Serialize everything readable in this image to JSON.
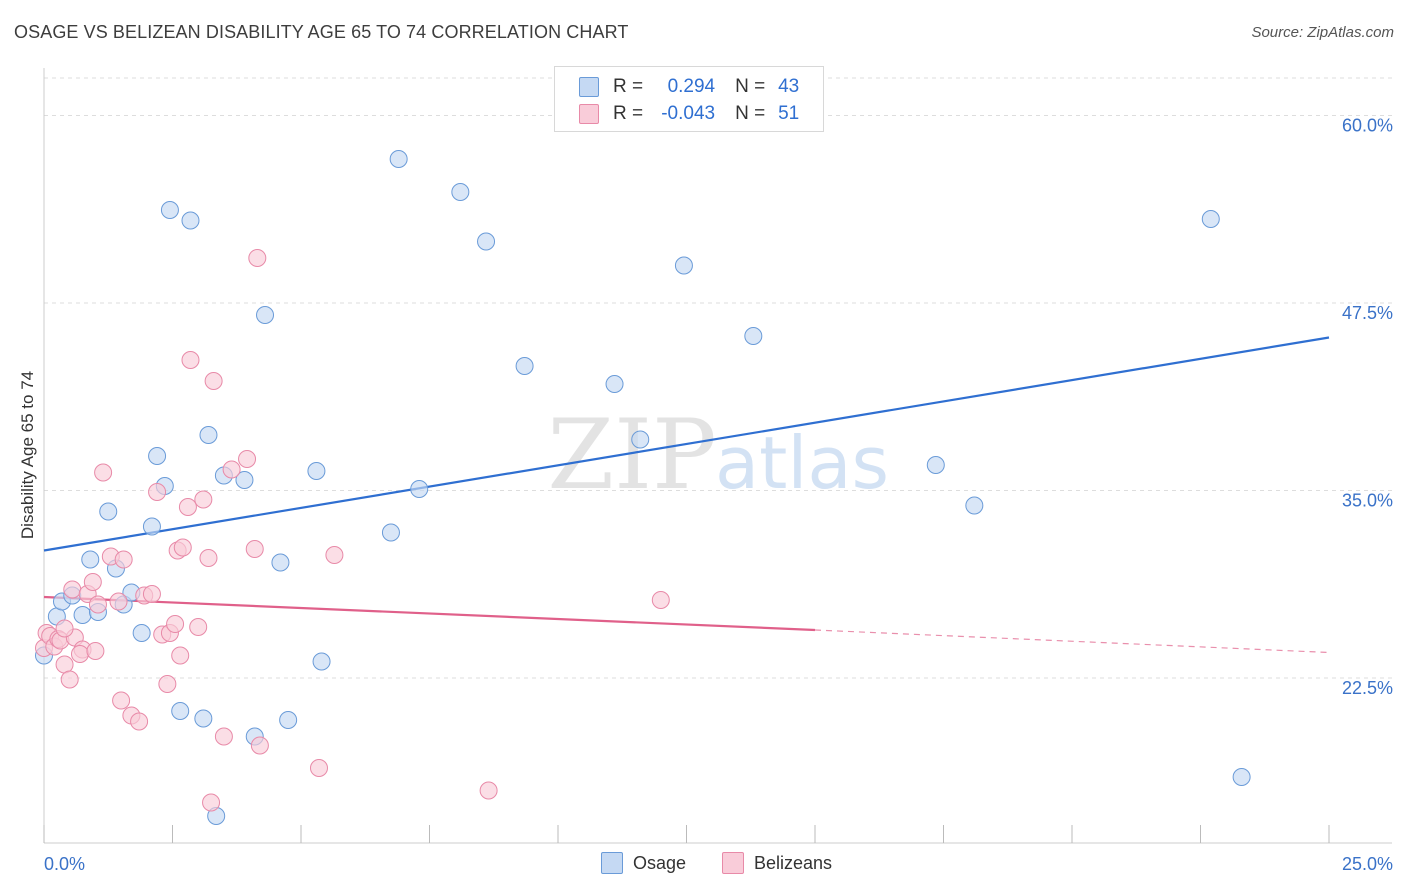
{
  "title": "OSAGE VS BELIZEAN DISABILITY AGE 65 TO 74 CORRELATION CHART",
  "source": "Source: ZipAtlas.com",
  "watermark": {
    "zip": "ZIP",
    "atlas": "atlas"
  },
  "legend": {
    "rows": [
      {
        "r_label": "R =",
        "r_value": "0.294",
        "n_label": "N =",
        "n_value": "43"
      },
      {
        "r_label": "R =",
        "r_value": "-0.043",
        "n_label": "N =",
        "n_value": "51"
      }
    ]
  },
  "bottom_legend": {
    "osage": "Osage",
    "belizeans": "Belizeans"
  },
  "colors": {
    "osage_fill": "#c5d9f3",
    "osage_stroke": "#6a9bd8",
    "osage_line": "#2f6fd1",
    "belizean_fill": "#f9ccd9",
    "belizean_stroke": "#e88aa8",
    "belizean_line": "#e0608a",
    "tick_label": "#3a72c8",
    "grid": "#dddddd"
  },
  "chart_data": {
    "type": "scatter",
    "title": "OSAGE VS BELIZEAN DISABILITY AGE 65 TO 74 CORRELATION CHART",
    "xlabel": "",
    "ylabel": "Disability Age 65 to 74",
    "xlim": [
      0,
      25
    ],
    "ylim": [
      11.5,
      62.5
    ],
    "x_tick_labels": [
      {
        "value": 0,
        "label": "0.0%"
      },
      {
        "value": 25,
        "label": "25.0%"
      }
    ],
    "y_ticks": [
      {
        "value": 22.5,
        "label": "22.5%"
      },
      {
        "value": 35.0,
        "label": "35.0%"
      },
      {
        "value": 47.5,
        "label": "47.5%"
      },
      {
        "value": 60.0,
        "label": "60.0%"
      }
    ],
    "series": [
      {
        "name": "Osage",
        "r": 0.294,
        "n": 43,
        "trend": {
          "x0": 0,
          "y0": 31.0,
          "x1": 25,
          "y1": 45.2
        },
        "points": [
          [
            0.0,
            24.0
          ],
          [
            0.25,
            26.6
          ],
          [
            0.35,
            27.6
          ],
          [
            0.55,
            28.0
          ],
          [
            0.75,
            26.7
          ],
          [
            0.9,
            30.4
          ],
          [
            1.05,
            26.9
          ],
          [
            1.25,
            33.6
          ],
          [
            1.4,
            29.8
          ],
          [
            1.55,
            27.4
          ],
          [
            1.7,
            28.2
          ],
          [
            1.9,
            25.5
          ],
          [
            2.1,
            32.6
          ],
          [
            2.2,
            37.3
          ],
          [
            2.35,
            35.3
          ],
          [
            2.45,
            53.7
          ],
          [
            2.65,
            20.3
          ],
          [
            2.85,
            53.0
          ],
          [
            3.1,
            19.8
          ],
          [
            3.2,
            38.7
          ],
          [
            3.35,
            13.3
          ],
          [
            3.5,
            36.0
          ],
          [
            3.9,
            35.7
          ],
          [
            4.1,
            18.6
          ],
          [
            4.3,
            46.7
          ],
          [
            4.6,
            30.2
          ],
          [
            4.75,
            19.7
          ],
          [
            5.3,
            36.3
          ],
          [
            5.4,
            23.6
          ],
          [
            6.75,
            32.2
          ],
          [
            6.9,
            57.1
          ],
          [
            7.3,
            35.1
          ],
          [
            8.1,
            54.9
          ],
          [
            8.6,
            51.6
          ],
          [
            9.35,
            43.3
          ],
          [
            11.1,
            42.1
          ],
          [
            11.6,
            38.4
          ],
          [
            12.45,
            50.0
          ],
          [
            13.8,
            45.3
          ],
          [
            17.35,
            36.7
          ],
          [
            18.1,
            34.0
          ],
          [
            22.7,
            53.1
          ],
          [
            23.3,
            15.9
          ]
        ]
      },
      {
        "name": "Belizeans",
        "r": -0.043,
        "n": 51,
        "trend": {
          "x0": 0,
          "y0": 27.9,
          "x1": 15,
          "y1": 25.7,
          "dashed_x1": 25,
          "dashed_y1": 24.2
        },
        "points": [
          [
            0.0,
            24.5
          ],
          [
            0.05,
            25.5
          ],
          [
            0.12,
            25.3
          ],
          [
            0.2,
            24.6
          ],
          [
            0.28,
            25.1
          ],
          [
            0.32,
            25.0
          ],
          [
            0.4,
            23.4
          ],
          [
            0.5,
            22.4
          ],
          [
            0.55,
            28.4
          ],
          [
            0.6,
            25.2
          ],
          [
            0.75,
            24.4
          ],
          [
            0.85,
            28.1
          ],
          [
            0.95,
            28.9
          ],
          [
            1.05,
            27.4
          ],
          [
            1.15,
            36.2
          ],
          [
            1.3,
            30.6
          ],
          [
            1.45,
            27.6
          ],
          [
            1.5,
            21.0
          ],
          [
            1.55,
            30.4
          ],
          [
            1.7,
            20.0
          ],
          [
            1.85,
            19.6
          ],
          [
            1.95,
            28.0
          ],
          [
            2.1,
            28.1
          ],
          [
            2.2,
            34.9
          ],
          [
            2.3,
            25.4
          ],
          [
            2.4,
            22.1
          ],
          [
            2.45,
            25.5
          ],
          [
            2.55,
            26.1
          ],
          [
            2.6,
            31.0
          ],
          [
            2.65,
            24.0
          ],
          [
            2.7,
            31.2
          ],
          [
            2.8,
            33.9
          ],
          [
            2.85,
            43.7
          ],
          [
            3.0,
            25.9
          ],
          [
            3.1,
            34.4
          ],
          [
            3.2,
            30.5
          ],
          [
            3.25,
            14.2
          ],
          [
            3.3,
            42.3
          ],
          [
            3.5,
            18.6
          ],
          [
            3.65,
            36.4
          ],
          [
            3.95,
            37.1
          ],
          [
            4.1,
            31.1
          ],
          [
            4.15,
            50.5
          ],
          [
            4.2,
            18.0
          ],
          [
            5.35,
            16.5
          ],
          [
            5.65,
            30.7
          ],
          [
            8.65,
            15.0
          ],
          [
            12.0,
            27.7
          ],
          [
            0.4,
            25.8
          ],
          [
            0.7,
            24.1
          ],
          [
            1.0,
            24.3
          ]
        ]
      }
    ]
  }
}
